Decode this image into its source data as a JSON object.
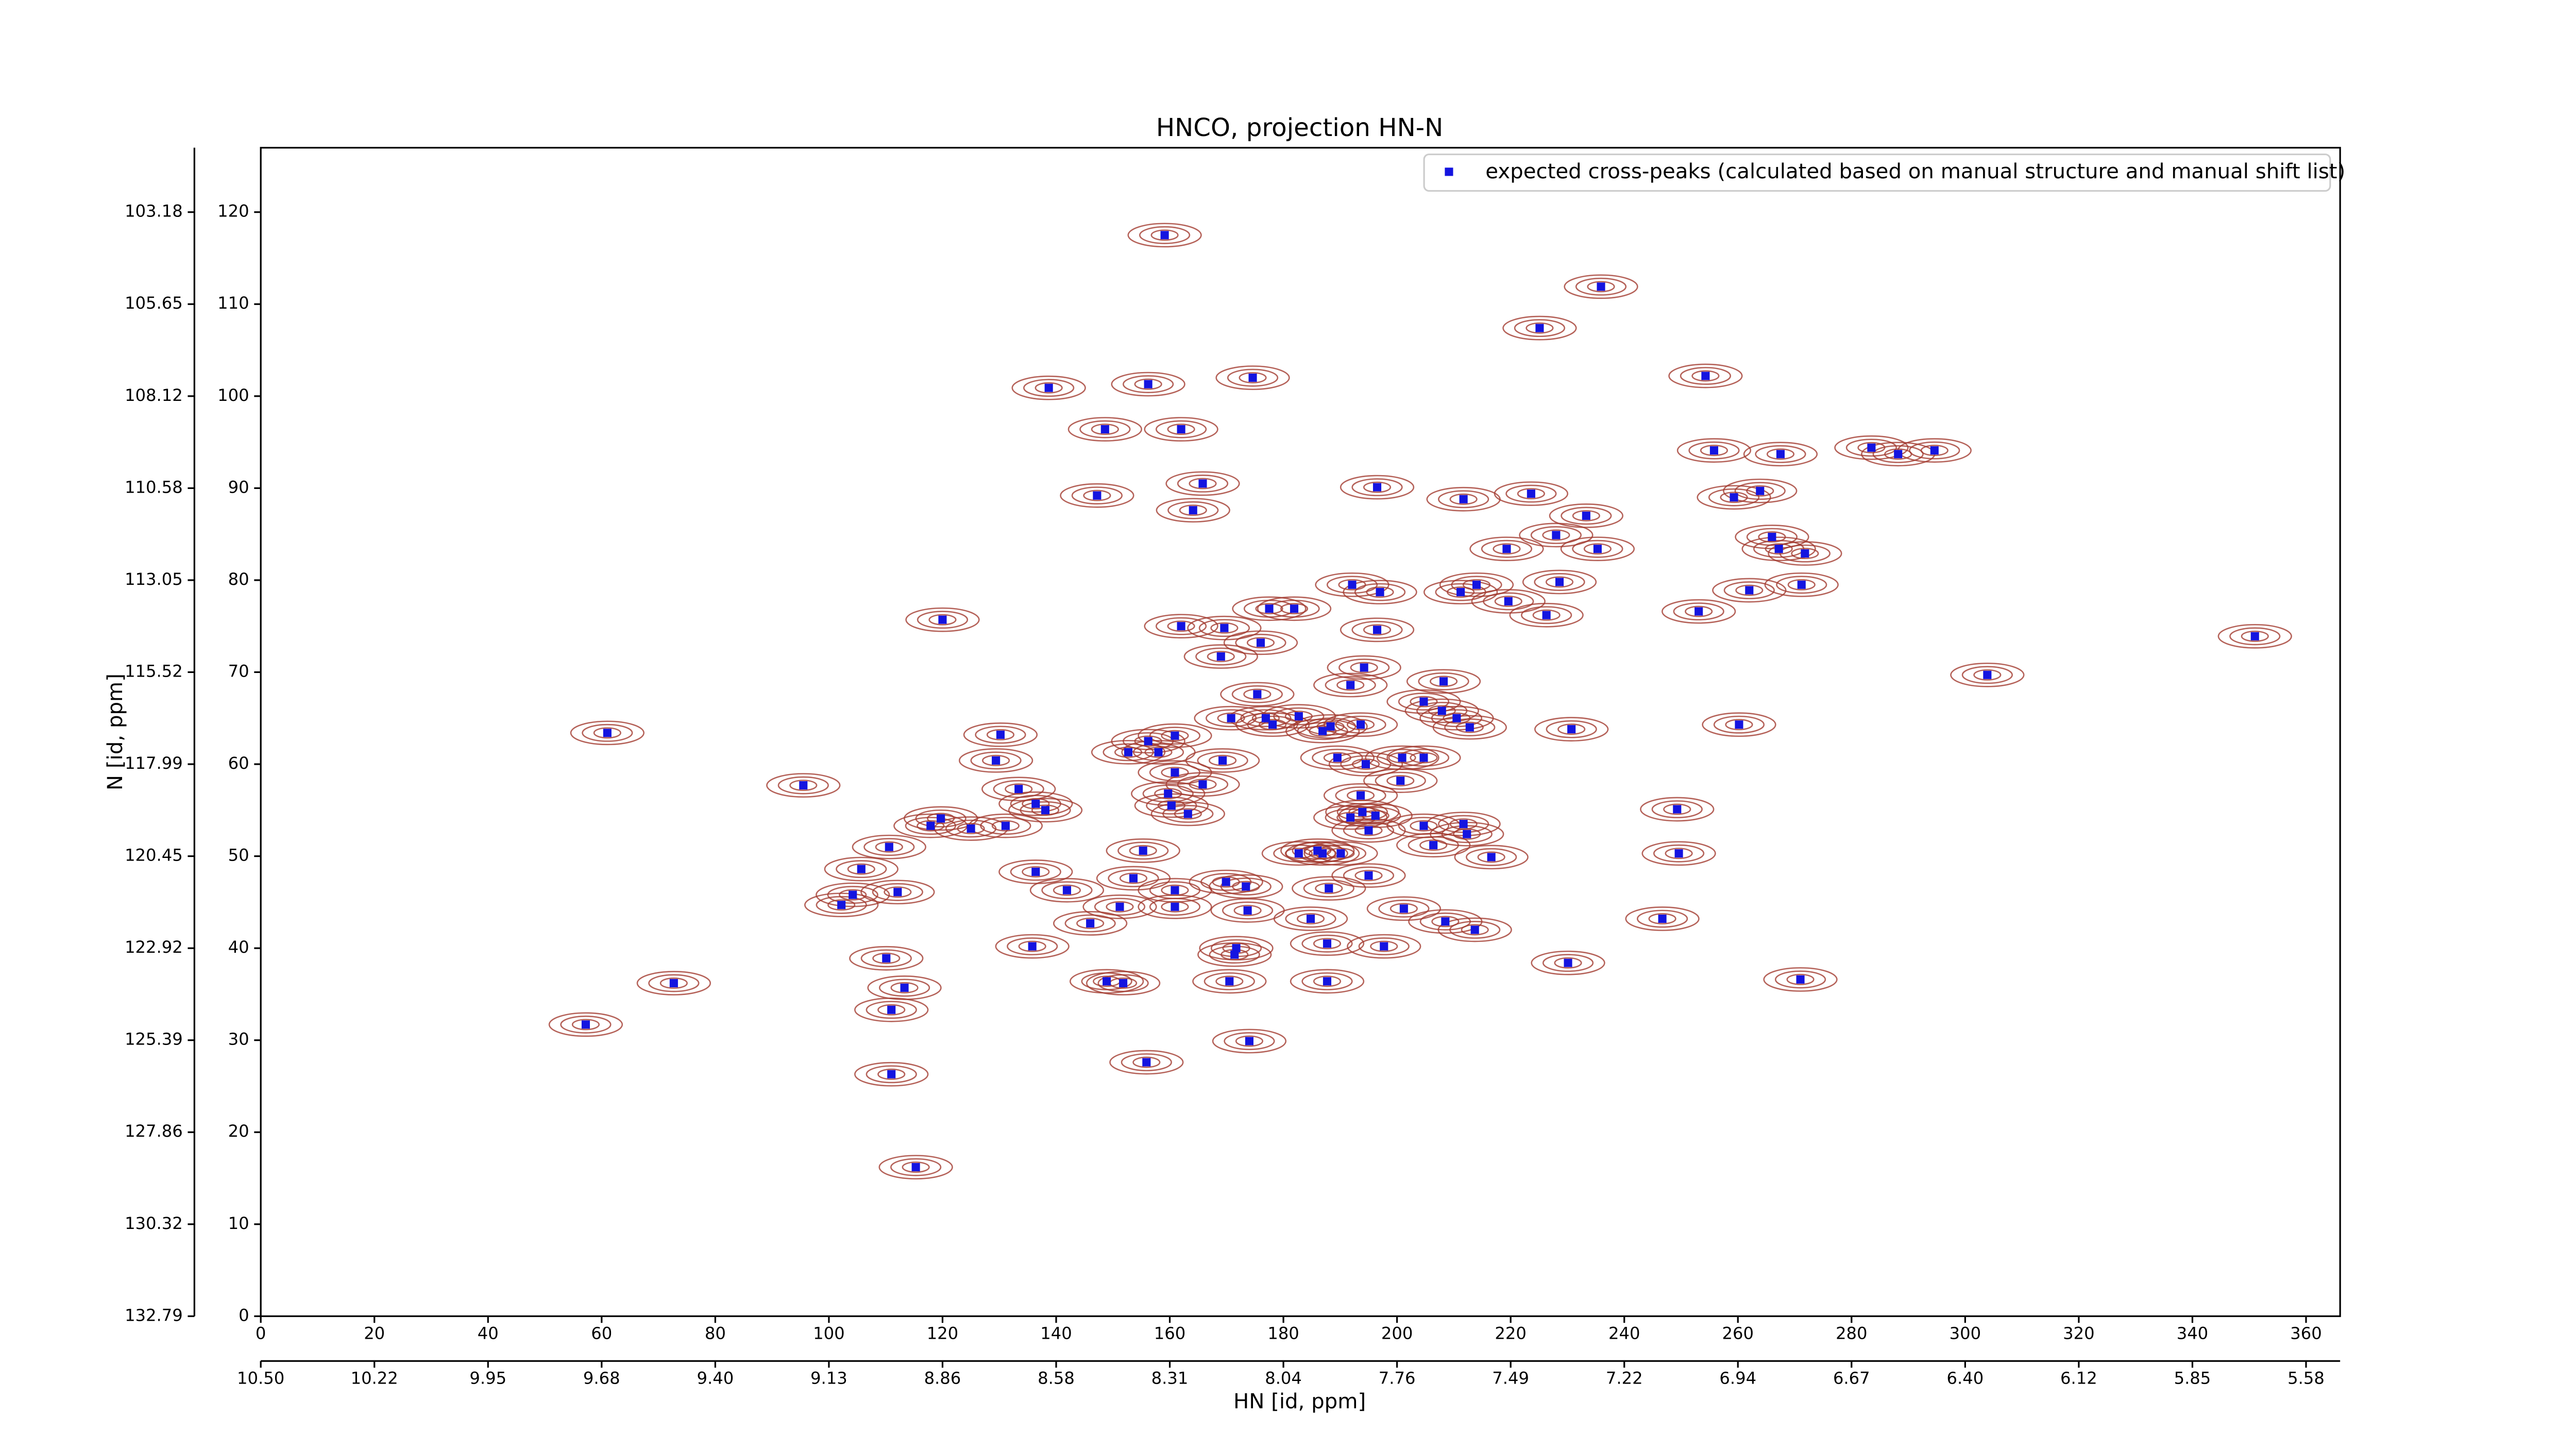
{
  "chart_data": {
    "type": "scatter",
    "title": "HNCO, projection HN-N",
    "x_label": "HN [id, ppm]",
    "y_label": "N [id, ppm]",
    "xlim": [
      0,
      366
    ],
    "ylim": [
      0,
      127
    ],
    "xticks": [
      0,
      20,
      40,
      60,
      80,
      100,
      120,
      140,
      160,
      180,
      200,
      220,
      240,
      260,
      280,
      300,
      320,
      340,
      360
    ],
    "yticks": [
      0,
      10,
      20,
      30,
      40,
      50,
      60,
      70,
      80,
      90,
      100,
      110,
      120
    ],
    "x2ticks": [
      {
        "value": 0,
        "label": "10.50"
      },
      {
        "value": 20,
        "label": "10.22"
      },
      {
        "value": 40,
        "label": "9.95"
      },
      {
        "value": 60,
        "label": "9.68"
      },
      {
        "value": 80,
        "label": "9.40"
      },
      {
        "value": 100,
        "label": "9.13"
      },
      {
        "value": 120,
        "label": "8.86"
      },
      {
        "value": 140,
        "label": "8.58"
      },
      {
        "value": 160,
        "label": "8.31"
      },
      {
        "value": 180,
        "label": "8.04"
      },
      {
        "value": 200,
        "label": "7.76"
      },
      {
        "value": 220,
        "label": "7.49"
      },
      {
        "value": 240,
        "label": "7.22"
      },
      {
        "value": 260,
        "label": "6.94"
      },
      {
        "value": 280,
        "label": "6.67"
      },
      {
        "value": 300,
        "label": "6.40"
      },
      {
        "value": 320,
        "label": "6.12"
      },
      {
        "value": 340,
        "label": "5.85"
      },
      {
        "value": 360,
        "label": "5.58"
      }
    ],
    "y2ticks": [
      {
        "value": 0,
        "label": "132.79"
      },
      {
        "value": 10,
        "label": "130.32"
      },
      {
        "value": 20,
        "label": "127.86"
      },
      {
        "value": 30,
        "label": "125.39"
      },
      {
        "value": 40,
        "label": "122.92"
      },
      {
        "value": 50,
        "label": "120.45"
      },
      {
        "value": 60,
        "label": "117.99"
      },
      {
        "value": 70,
        "label": "115.52"
      },
      {
        "value": 80,
        "label": "113.05"
      },
      {
        "value": 90,
        "label": "110.58"
      },
      {
        "value": 100,
        "label": "108.12"
      },
      {
        "value": 110,
        "label": "105.65"
      },
      {
        "value": 120,
        "label": "103.18"
      }
    ],
    "contour_color": "#a23b30",
    "x": [
      159.1,
      235.9,
      225.1,
      138.7,
      156.2,
      174.6,
      254.3,
      148.6,
      162,
      255.8,
      267.5,
      283.5,
      288.2,
      294.6,
      165.8,
      147.2,
      164.1,
      196.5,
      211.7,
      223.6,
      259.3,
      263.9,
      233.3,
      228,
      219.3,
      235.3,
      266,
      267.2,
      271.8,
      271.2,
      262,
      228.6,
      211.2,
      214,
      219.6,
      226.3,
      253.1,
      120,
      177.5,
      181.9,
      162,
      169.6,
      197,
      192.1,
      196.5,
      176,
      169,
      351,
      303.9,
      194.2,
      191.8,
      208.2,
      207.9,
      210.5,
      204.7,
      175.4,
      170.8,
      176.9,
      178.1,
      182.7,
      186.9,
      188.3,
      193.6,
      212.8,
      230.7,
      260.2,
      61,
      130.2,
      156.2,
      158,
      160.9,
      152.7,
      169.3,
      189.5,
      194.5,
      200.9,
      204.7,
      129.4,
      160.9,
      200.6,
      95.5,
      133.4,
      159.7,
      165.8,
      160.3,
      136.4,
      138.1,
      193.6,
      193.9,
      196.2,
      191.8,
      163.2,
      119.7,
      117.9,
      125,
      131.1,
      249.3,
      211.7,
      212.3,
      204.7,
      195,
      206.4,
      110.6,
      155.3,
      182.7,
      186,
      186.9,
      190.1,
      216.6,
      249.6,
      105.7,
      136.4,
      195,
      153.6,
      169.9,
      173.4,
      188,
      141.9,
      112.1,
      104.2,
      160.9,
      151.2,
      102.2,
      160.9,
      173.7,
      201.2,
      146,
      184.8,
      208.5,
      213.7,
      246.7,
      135.8,
      171.7,
      171.4,
      187.7,
      197.7,
      110.1,
      230.1,
      72.7,
      148.9,
      151.8,
      170.5,
      187.7,
      113.3,
      271,
      111,
      57.2,
      174,
      155.9,
      111,
      115.3
    ],
    "series": [
      {
        "name": "expected cross-peaks (calculated based on manual structure and manual shift list)",
        "color": "#1414e0",
        "values": [
          117.5,
          111.9,
          107.4,
          100.9,
          101.3,
          102,
          102.2,
          96.4,
          96.4,
          94.1,
          93.7,
          94.4,
          93.7,
          94.1,
          90.5,
          89.2,
          87.6,
          90.1,
          88.8,
          89.4,
          89,
          89.7,
          87,
          84.9,
          83.4,
          83.4,
          84.7,
          83.4,
          82.9,
          79.5,
          78.9,
          79.8,
          78.7,
          79.5,
          77.7,
          76.2,
          76.6,
          75.7,
          76.9,
          76.9,
          75,
          74.8,
          78.7,
          79.5,
          74.6,
          73.2,
          71.7,
          73.9,
          69.7,
          70.5,
          68.6,
          69,
          65.8,
          65,
          66.8,
          67.6,
          65,
          65,
          64.3,
          65.2,
          63.6,
          64.1,
          64.3,
          64,
          63.8,
          64.3,
          63.4,
          63.2,
          62.5,
          61.3,
          63.1,
          61.3,
          60.4,
          60.7,
          60,
          60.7,
          60.7,
          60.4,
          59.1,
          58.2,
          57.7,
          57.3,
          56.8,
          57.8,
          55.5,
          55.7,
          55,
          56.6,
          54.8,
          54.4,
          54.2,
          54.6,
          54.1,
          53.3,
          53,
          53.3,
          55.1,
          53.5,
          52.4,
          53.3,
          52.8,
          51.2,
          51,
          50.6,
          50.3,
          50.6,
          50.3,
          50.3,
          49.9,
          50.3,
          48.6,
          48.3,
          47.9,
          47.6,
          47.2,
          46.7,
          46.5,
          46.3,
          46.1,
          45.8,
          46.3,
          44.5,
          44.7,
          44.5,
          44.1,
          44.3,
          42.7,
          43.2,
          42.9,
          42,
          43.2,
          40.2,
          40,
          39.3,
          40.5,
          40.2,
          38.9,
          38.4,
          36.2,
          36.4,
          36.2,
          36.4,
          36.4,
          35.7,
          36.6,
          33.3,
          31.7,
          29.9,
          27.6,
          26.3,
          16.2
        ]
      }
    ]
  }
}
